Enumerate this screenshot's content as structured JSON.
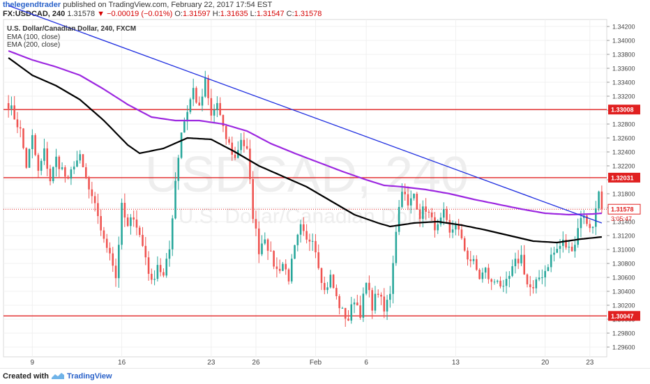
{
  "header": {
    "author": "thelegendtrader",
    "published_text": "published on TradingView.com, February 22, 2017 17:54 EST",
    "symbol": "FX:USDCAD, 240",
    "last": "1.31578",
    "change": "▼ −0.00019 (−0.01%)",
    "o_label": "O:",
    "o_value": "1.31597",
    "h_label": "H:",
    "h_value": "1.31635",
    "l_label": "L:",
    "l_value": "1.31547",
    "c_label": "C:",
    "c_value": "1.31578"
  },
  "legend": {
    "title": "U.S. Dollar/Canadian Dollar, 240, FXCM",
    "ema100": "EMA (100, close)",
    "ema200": "EMA (200, close)"
  },
  "watermark": {
    "symbol": "USDCAD, 240",
    "name": "U.S. Dollar/Canadian Dollar"
  },
  "footer": {
    "created_with": "Created with",
    "brand": "TradingView"
  },
  "colors": {
    "up": "#26a69a",
    "down": "#ef5350",
    "ema100": "#000000",
    "ema200": "#9c27e0",
    "trendline": "#1f2ee0",
    "level": "#e02020",
    "price_line": "#e02020"
  },
  "chart_data": {
    "type": "candlestick",
    "symbol": "USDCAD",
    "interval": "240",
    "ylim": [
      1.2946,
      1.343
    ],
    "y_ticks": [
      "1.29600",
      "1.29800",
      "1.30000",
      "1.30200",
      "1.30400",
      "1.30600",
      "1.30800",
      "1.31000",
      "1.31200",
      "1.31400",
      "1.31600",
      "1.31800",
      "1.32000",
      "1.32200",
      "1.32400",
      "1.32600",
      "1.32800",
      "1.33000",
      "1.33200",
      "1.33400",
      "1.33600",
      "1.33800",
      "1.34000",
      "1.34200"
    ],
    "x_ticks": [
      {
        "label": "9",
        "bar": 8
      },
      {
        "label": "16",
        "bar": 38
      },
      {
        "label": "23",
        "bar": 68
      },
      {
        "label": "26",
        "bar": 83
      },
      {
        "label": "Feb",
        "bar": 103
      },
      {
        "label": "6",
        "bar": 120
      },
      {
        "label": "13",
        "bar": 150
      },
      {
        "label": "20",
        "bar": 180
      },
      {
        "label": "23",
        "bar": 195
      }
    ],
    "bar_count": 200,
    "anchors": [
      [
        0,
        1.331
      ],
      [
        2,
        1.329
      ],
      [
        4,
        1.327
      ],
      [
        6,
        1.322
      ],
      [
        8,
        1.326
      ],
      [
        10,
        1.321
      ],
      [
        12,
        1.324
      ],
      [
        14,
        1.32
      ],
      [
        16,
        1.323
      ],
      [
        18,
        1.3215
      ],
      [
        20,
        1.3195
      ],
      [
        22,
        1.3225
      ],
      [
        24,
        1.323
      ],
      [
        26,
        1.32
      ],
      [
        28,
        1.317
      ],
      [
        30,
        1.315
      ],
      [
        32,
        1.311
      ],
      [
        34,
        1.31
      ],
      [
        36,
        1.306
      ],
      [
        38,
        1.316
      ],
      [
        40,
        1.313
      ],
      [
        42,
        1.315
      ],
      [
        44,
        1.312
      ],
      [
        46,
        1.309
      ],
      [
        48,
        1.305
      ],
      [
        50,
        1.308
      ],
      [
        52,
        1.306
      ],
      [
        54,
        1.31
      ],
      [
        56,
        1.32
      ],
      [
        58,
        1.327
      ],
      [
        60,
        1.33
      ],
      [
        62,
        1.333
      ],
      [
        64,
        1.33
      ],
      [
        66,
        1.334
      ],
      [
        68,
        1.329
      ],
      [
        70,
        1.331
      ],
      [
        72,
        1.327
      ],
      [
        74,
        1.325
      ],
      [
        76,
        1.323
      ],
      [
        78,
        1.326
      ],
      [
        80,
        1.324
      ],
      [
        82,
        1.315
      ],
      [
        84,
        1.31
      ],
      [
        86,
        1.312
      ],
      [
        88,
        1.309
      ],
      [
        90,
        1.307
      ],
      [
        92,
        1.308
      ],
      [
        94,
        1.306
      ],
      [
        96,
        1.31
      ],
      [
        98,
        1.313
      ],
      [
        100,
        1.311
      ],
      [
        102,
        1.312
      ],
      [
        104,
        1.308
      ],
      [
        106,
        1.304
      ],
      [
        108,
        1.306
      ],
      [
        110,
        1.303
      ],
      [
        112,
        1.301
      ],
      [
        114,
        1.3
      ],
      [
        116,
        1.303
      ],
      [
        118,
        1.301
      ],
      [
        120,
        1.305
      ],
      [
        122,
        1.302
      ],
      [
        124,
        1.304
      ],
      [
        126,
        1.301
      ],
      [
        128,
        1.304
      ],
      [
        130,
        1.313
      ],
      [
        132,
        1.319
      ],
      [
        134,
        1.316
      ],
      [
        136,
        1.318
      ],
      [
        138,
        1.315
      ],
      [
        140,
        1.316
      ],
      [
        142,
        1.314
      ],
      [
        144,
        1.313
      ],
      [
        146,
        1.315
      ],
      [
        148,
        1.312
      ],
      [
        150,
        1.314
      ],
      [
        152,
        1.311
      ],
      [
        154,
        1.309
      ],
      [
        156,
        1.308
      ],
      [
        158,
        1.306
      ],
      [
        160,
        1.307
      ],
      [
        162,
        1.305
      ],
      [
        164,
        1.306
      ],
      [
        166,
        1.304
      ],
      [
        168,
        1.306
      ],
      [
        170,
        1.308
      ],
      [
        172,
        1.309
      ],
      [
        174,
        1.305
      ],
      [
        176,
        1.304
      ],
      [
        178,
        1.306
      ],
      [
        180,
        1.307
      ],
      [
        182,
        1.309
      ],
      [
        184,
        1.31
      ],
      [
        186,
        1.311
      ],
      [
        188,
        1.31
      ],
      [
        190,
        1.311
      ],
      [
        192,
        1.315
      ],
      [
        194,
        1.314
      ],
      [
        196,
        1.313
      ],
      [
        198,
        1.319
      ],
      [
        199,
        1.3158
      ]
    ],
    "ema100_points": [
      [
        0,
        1.3375
      ],
      [
        8,
        1.335
      ],
      [
        16,
        1.3335
      ],
      [
        24,
        1.3315
      ],
      [
        32,
        1.3285
      ],
      [
        40,
        1.325
      ],
      [
        44,
        1.3238
      ],
      [
        52,
        1.3245
      ],
      [
        60,
        1.326
      ],
      [
        68,
        1.3258
      ],
      [
        76,
        1.324
      ],
      [
        84,
        1.322
      ],
      [
        92,
        1.3205
      ],
      [
        100,
        1.319
      ],
      [
        108,
        1.317
      ],
      [
        116,
        1.315
      ],
      [
        124,
        1.3138
      ],
      [
        128,
        1.3133
      ],
      [
        136,
        1.3138
      ],
      [
        144,
        1.314
      ],
      [
        152,
        1.3135
      ],
      [
        160,
        1.3128
      ],
      [
        168,
        1.312
      ],
      [
        176,
        1.3112
      ],
      [
        184,
        1.311
      ],
      [
        192,
        1.3115
      ],
      [
        199,
        1.3118
      ]
    ],
    "ema200_points": [
      [
        0,
        1.3385
      ],
      [
        8,
        1.3372
      ],
      [
        16,
        1.3362
      ],
      [
        24,
        1.335
      ],
      [
        32,
        1.333
      ],
      [
        40,
        1.3308
      ],
      [
        48,
        1.329
      ],
      [
        56,
        1.3285
      ],
      [
        64,
        1.3285
      ],
      [
        72,
        1.328
      ],
      [
        80,
        1.327
      ],
      [
        88,
        1.3252
      ],
      [
        96,
        1.3238
      ],
      [
        104,
        1.3225
      ],
      [
        112,
        1.3212
      ],
      [
        120,
        1.32
      ],
      [
        126,
        1.3192
      ],
      [
        132,
        1.319
      ],
      [
        140,
        1.3186
      ],
      [
        148,
        1.318
      ],
      [
        156,
        1.3172
      ],
      [
        164,
        1.3165
      ],
      [
        172,
        1.3158
      ],
      [
        180,
        1.3152
      ],
      [
        188,
        1.315
      ],
      [
        196,
        1.3151
      ],
      [
        199,
        1.3152
      ]
    ],
    "trendline": {
      "from": [
        0,
        1.345
      ],
      "to": [
        199,
        1.3138
      ]
    },
    "levels": [
      "1.33008",
      "1.32031",
      "1.30047"
    ],
    "last_price": "1.31578",
    "countdown": "3:05:47"
  }
}
